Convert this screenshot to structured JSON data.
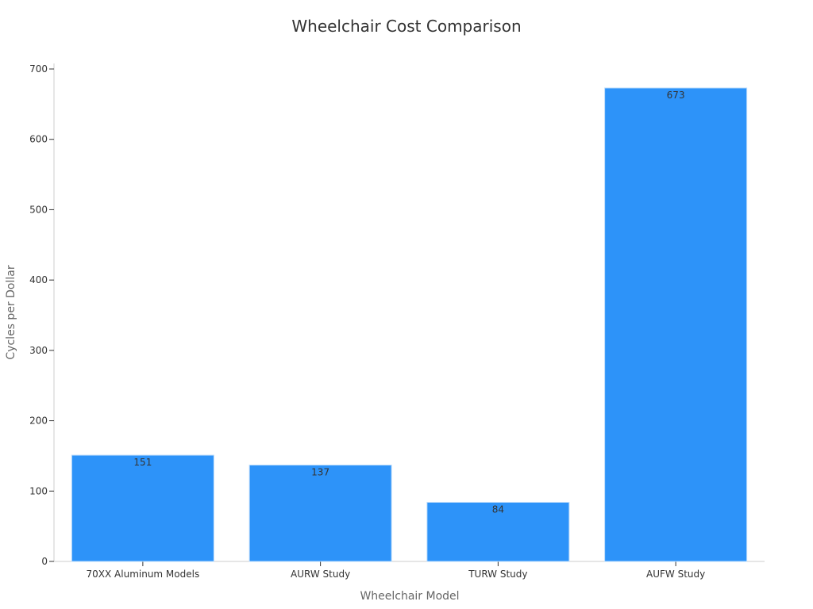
{
  "chart_data": {
    "type": "bar",
    "title": "Wheelchair Cost Comparison",
    "xlabel": "Wheelchair Model",
    "ylabel": "Cycles per Dollar",
    "categories": [
      "70XX Aluminum Models",
      "AURW Study",
      "TURW Study",
      "AUFW Study"
    ],
    "values": [
      151,
      137,
      84,
      673
    ],
    "data_labels": [
      "151",
      "137",
      "84",
      "673"
    ],
    "ylim": [
      0,
      700
    ],
    "yticks": [
      0,
      100,
      200,
      300,
      400,
      500,
      600,
      700
    ],
    "ytick_labels": [
      "0",
      "100",
      "200",
      "300",
      "400",
      "500",
      "600",
      "700"
    ],
    "grid": false,
    "legend": "none",
    "colors": {
      "bar": "#2d93f9",
      "bar_edge": "#bcdcfb",
      "axis": "#cccccc",
      "tick_text": "#333333",
      "label_text": "#666666",
      "title_text": "#333333"
    }
  }
}
